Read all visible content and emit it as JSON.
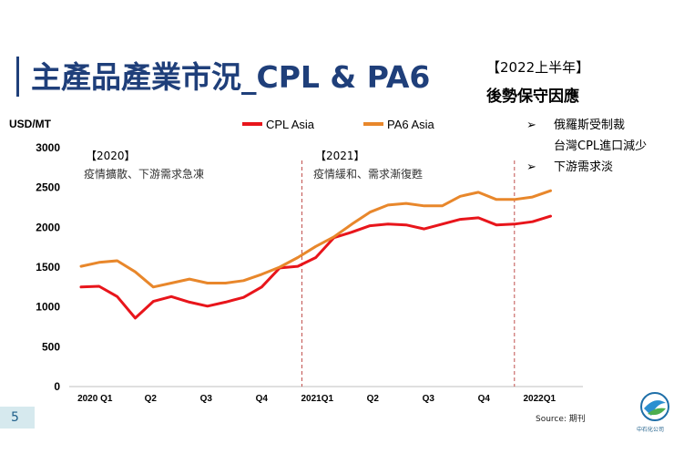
{
  "slide": {
    "title": "主產品產業市況_CPL & PA6",
    "period_label": "【2022上半年】",
    "outlook_heading": "後勢保守因應",
    "bullets": [
      {
        "marker": "➢",
        "line1": "俄羅斯受制裁",
        "line2": "台灣CPL進口減少"
      },
      {
        "marker": "➢",
        "line1": "下游需求淡"
      }
    ],
    "page_number": "5",
    "source": "Source: 期刊",
    "logo_text": "中石化公司"
  },
  "colors": {
    "cpl": "#e8151b",
    "pa6": "#e8872b",
    "title": "#1f3f7a",
    "divider": "#c0504d"
  },
  "chart_data": {
    "type": "line",
    "title": "",
    "ylabel": "USD/MT",
    "xlabel": "",
    "ylim": [
      0,
      3000
    ],
    "yticks": [
      0,
      500,
      1000,
      1500,
      2000,
      2500,
      3000
    ],
    "x_tick_labels": [
      {
        "label": "2020 Q1",
        "index": 1
      },
      {
        "label": "Q2",
        "index": 5
      },
      {
        "label": "Q3",
        "index": 9
      },
      {
        "label": "Q4",
        "index": 13
      },
      {
        "label": "2021Q1",
        "index": 17
      },
      {
        "label": "Q2",
        "index": 21
      },
      {
        "label": "Q3",
        "index": 25
      },
      {
        "label": "Q4",
        "index": 29
      },
      {
        "label": "2022Q1",
        "index": 33
      }
    ],
    "x_count": 35,
    "series": [
      {
        "name": "CPL Asia",
        "color": "#e8151b",
        "values": [
          1250,
          1260,
          1130,
          860,
          1070,
          1130,
          1060,
          1010,
          1060,
          1120,
          1250,
          1490,
          1510,
          1620,
          1870,
          1940,
          2020,
          2040,
          2030,
          1980,
          2040,
          2100,
          2120,
          2030,
          2040,
          2070,
          2140
        ]
      },
      {
        "name": "PA6 Asia",
        "color": "#e8872b",
        "values": [
          1510,
          1560,
          1580,
          1440,
          1250,
          1300,
          1350,
          1300,
          1300,
          1330,
          1410,
          1500,
          1620,
          1760,
          1880,
          2040,
          2190,
          2280,
          2300,
          2270,
          2270,
          2390,
          2440,
          2350,
          2350,
          2380,
          2460
        ]
      }
    ],
    "series_x_start": 0,
    "series_x_step": 1.3,
    "dividers": [
      {
        "index": 15.9
      },
      {
        "index": 31.2
      }
    ],
    "annotations": [
      {
        "heading": "【2020】",
        "text": "疫情擴散、下游需求急凍"
      },
      {
        "heading": "【2021】",
        "text": "疫情緩和、需求漸復甦"
      }
    ]
  }
}
